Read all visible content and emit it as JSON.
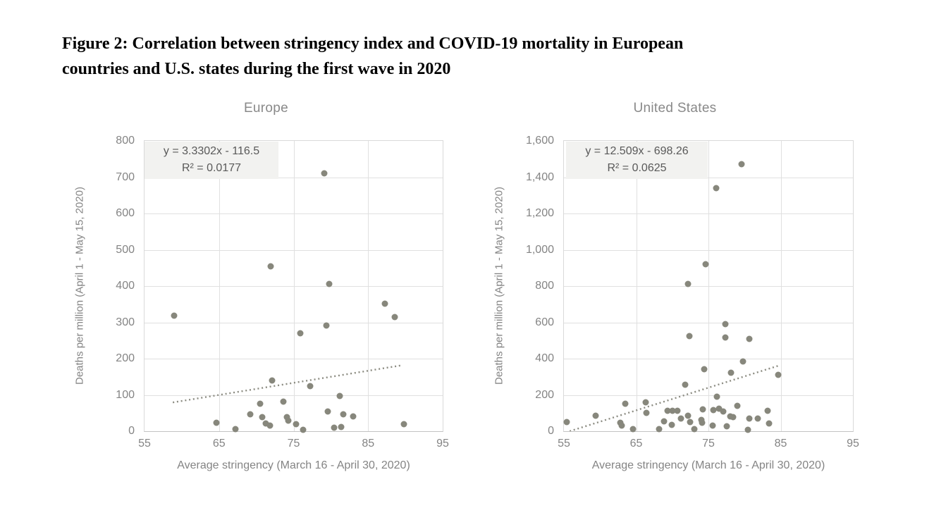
{
  "figure_title": {
    "lines": [
      "Figure 2: Correlation between stringency index and COVID-19 mortality in European",
      "countries and U.S. states during the first wave in 2020"
    ]
  },
  "colors": {
    "dot": "#87877c",
    "gridline": "#e0e0e0",
    "axis_text": "#848484",
    "chart_title_text": "#898989",
    "equation_text": "#595959",
    "equation_background": "#f2f2f0",
    "trendline": "#8b8b81"
  },
  "chart_data": [
    {
      "type": "scatter",
      "title": "Europe",
      "xlabel": "Average stringency (March 16 - April 30, 2020)",
      "ylabel": "Deaths per million (April 1 - May 15, 2020)",
      "xlim": [
        55,
        95
      ],
      "ylim": [
        0,
        800
      ],
      "x_ticks": [
        "55",
        "65",
        "75",
        "85",
        "95"
      ],
      "y_ticks": [
        "0",
        "100",
        "200",
        "300",
        "400",
        "500",
        "600",
        "700",
        "800"
      ],
      "grid": true,
      "equation": "y = 3.3302x - 116.5",
      "r_squared": "R² = 0.0177",
      "trendline": {
        "x1": 58.8,
        "y1": 79.3,
        "x2": 89.6,
        "y2": 181.9
      },
      "points": [
        [
          59,
          318
        ],
        [
          64.6,
          23
        ],
        [
          67.2,
          6
        ],
        [
          69.2,
          46
        ],
        [
          70.5,
          75
        ],
        [
          70.8,
          39
        ],
        [
          71.3,
          22
        ],
        [
          71.8,
          15
        ],
        [
          71.9,
          455
        ],
        [
          72.1,
          140
        ],
        [
          73.6,
          81
        ],
        [
          74.1,
          38
        ],
        [
          74.3,
          30
        ],
        [
          75.3,
          20
        ],
        [
          75.9,
          270
        ],
        [
          76.3,
          4
        ],
        [
          77.2,
          125
        ],
        [
          79.1,
          710
        ],
        [
          79.4,
          291
        ],
        [
          79.6,
          54
        ],
        [
          79.8,
          405
        ],
        [
          80.4,
          10
        ],
        [
          81.2,
          97
        ],
        [
          81.4,
          11
        ],
        [
          81.7,
          46
        ],
        [
          83,
          41
        ],
        [
          87.2,
          351
        ],
        [
          88.6,
          314
        ],
        [
          89.8,
          20
        ]
      ]
    },
    {
      "type": "scatter",
      "title": "United States",
      "xlabel": "Average stringency (March 16 - April 30, 2020)",
      "ylabel": "Deaths per million (April 1 - May 15, 2020)",
      "xlim": [
        55,
        95
      ],
      "ylim": [
        0,
        1600
      ],
      "x_ticks": [
        "55",
        "65",
        "75",
        "85",
        "95"
      ],
      "y_ticks": [
        "0",
        "200",
        "400",
        "600",
        "800",
        "1,000",
        "1,200",
        "1,400",
        "1,600"
      ],
      "grid": true,
      "equation": "y = 12.509x - 698.26",
      "r_squared": "R² = 0.0625",
      "trendline": {
        "x1": 55.8,
        "y1": 0,
        "x2": 84.6,
        "y2": 359.8
      },
      "points": [
        [
          55.4,
          49
        ],
        [
          59.4,
          87
        ],
        [
          62.8,
          48
        ],
        [
          63,
          31
        ],
        [
          63.5,
          150
        ],
        [
          64.6,
          10
        ],
        [
          66.3,
          158
        ],
        [
          66.4,
          100
        ],
        [
          68.2,
          11
        ],
        [
          68.9,
          54
        ],
        [
          69.3,
          113
        ],
        [
          69.9,
          36
        ],
        [
          70,
          113
        ],
        [
          70.7,
          113
        ],
        [
          71.2,
          71
        ],
        [
          71.8,
          255
        ],
        [
          72.2,
          84
        ],
        [
          72.2,
          810
        ],
        [
          72.4,
          525
        ],
        [
          72.5,
          49
        ],
        [
          73,
          10
        ],
        [
          74,
          62
        ],
        [
          74.1,
          45
        ],
        [
          74.2,
          122
        ],
        [
          74.4,
          340
        ],
        [
          74.6,
          920
        ],
        [
          75.6,
          33
        ],
        [
          75.7,
          116
        ],
        [
          76.1,
          1340
        ],
        [
          76.2,
          190
        ],
        [
          76.5,
          125
        ],
        [
          77,
          110
        ],
        [
          77.3,
          590
        ],
        [
          77.3,
          515
        ],
        [
          77.5,
          29
        ],
        [
          78,
          80
        ],
        [
          78.1,
          322
        ],
        [
          78.4,
          78
        ],
        [
          79,
          140
        ],
        [
          79.6,
          1470
        ],
        [
          79.8,
          384
        ],
        [
          80.5,
          6
        ],
        [
          80.7,
          71
        ],
        [
          80.7,
          507
        ],
        [
          81.8,
          71
        ],
        [
          83.2,
          114
        ],
        [
          83.4,
          43
        ],
        [
          84.7,
          312
        ]
      ]
    }
  ]
}
